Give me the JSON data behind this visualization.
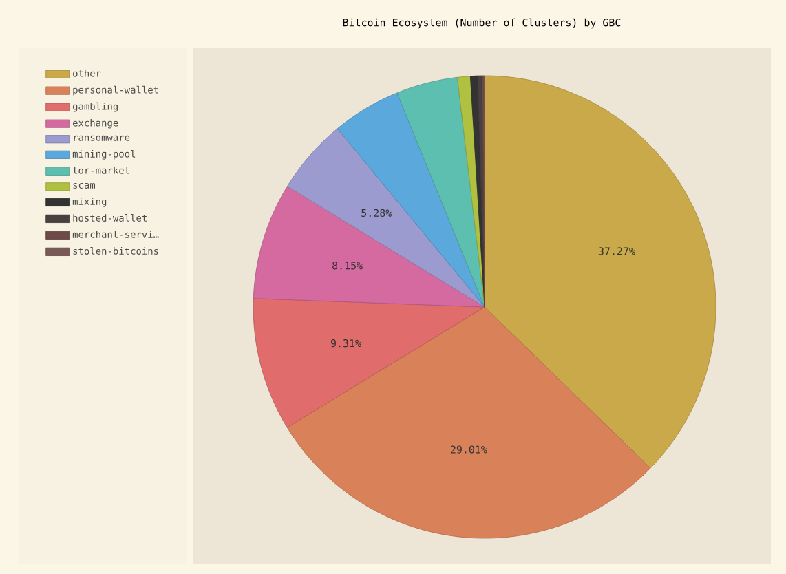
{
  "chart_data": {
    "type": "pie",
    "title": "Bitcoin Ecosystem (Number of Clusters) by GBC",
    "categories": [
      "other",
      "personal-wallet",
      "gambling",
      "exchange",
      "ransomware",
      "mining-pool",
      "tor-market",
      "scam",
      "mixing",
      "hosted-wallet",
      "merchant-servi…",
      "stolen-bitcoins"
    ],
    "values": [
      37.27,
      29.01,
      9.31,
      8.15,
      5.28,
      4.8,
      4.3,
      0.9,
      0.5,
      0.3,
      0.1,
      0.08
    ],
    "value_labels": [
      "37.27%",
      "29.01%",
      "9.31%",
      "8.15%",
      "5.28%",
      null,
      null,
      null,
      null,
      null,
      null,
      null
    ],
    "colors": [
      "#c9a94a",
      "#d9825a",
      "#e06c6c",
      "#d46aa0",
      "#9b9bd0",
      "#5aa8dc",
      "#5dbfb0",
      "#b0c040",
      "#333333",
      "#4a4040",
      "#6e4a48",
      "#7a5a58"
    ],
    "legend": "left"
  }
}
